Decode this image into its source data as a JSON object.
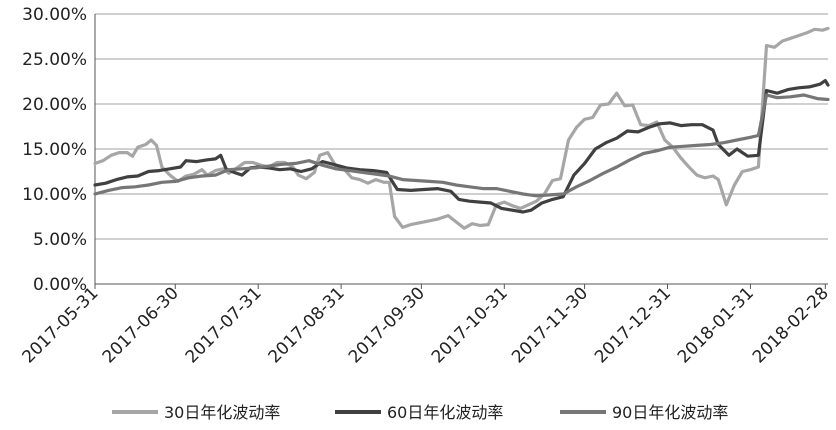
{
  "chart_data": {
    "type": "line",
    "title": "",
    "xlabel": "",
    "ylabel": "",
    "ylim": [
      0,
      0.3
    ],
    "y_ticks": [
      "0.00%",
      "5.00%",
      "10.00%",
      "15.00%",
      "20.00%",
      "25.00%",
      "30.00%"
    ],
    "x_ticks": [
      "2017-05-31",
      "2017-06-30",
      "2017-07-31",
      "2017-08-31",
      "2017-09-30",
      "2017-10-31",
      "2017-11-30",
      "2017-12-31",
      "2018-01-31",
      "2018-02-28"
    ],
    "x_range": [
      "2017-05-31",
      "2018-03-01"
    ],
    "grid": "horizontal",
    "legend_position": "bottom",
    "series": [
      {
        "name": "30日年化波动率",
        "color": "#a6a6a6",
        "points": [
          [
            "2017-05-31",
            0.134
          ],
          [
            "2017-06-03",
            0.137
          ],
          [
            "2017-06-06",
            0.143
          ],
          [
            "2017-06-09",
            0.146
          ],
          [
            "2017-06-12",
            0.146
          ],
          [
            "2017-06-14",
            0.142
          ],
          [
            "2017-06-16",
            0.152
          ],
          [
            "2017-06-19",
            0.155
          ],
          [
            "2017-06-21",
            0.16
          ],
          [
            "2017-06-23",
            0.154
          ],
          [
            "2017-06-25",
            0.13
          ],
          [
            "2017-06-28",
            0.121
          ],
          [
            "2017-07-01",
            0.114
          ],
          [
            "2017-07-04",
            0.12
          ],
          [
            "2017-07-07",
            0.122
          ],
          [
            "2017-07-10",
            0.127
          ],
          [
            "2017-07-12",
            0.121
          ],
          [
            "2017-07-15",
            0.126
          ],
          [
            "2017-07-18",
            0.128
          ],
          [
            "2017-07-20",
            0.123
          ],
          [
            "2017-07-23",
            0.129
          ],
          [
            "2017-07-26",
            0.135
          ],
          [
            "2017-07-29",
            0.135
          ],
          [
            "2017-08-01",
            0.132
          ],
          [
            "2017-08-04",
            0.13
          ],
          [
            "2017-08-07",
            0.135
          ],
          [
            "2017-08-10",
            0.135
          ],
          [
            "2017-08-13",
            0.13
          ],
          [
            "2017-08-15",
            0.121
          ],
          [
            "2017-08-18",
            0.117
          ],
          [
            "2017-08-21",
            0.124
          ],
          [
            "2017-08-23",
            0.143
          ],
          [
            "2017-08-26",
            0.146
          ],
          [
            "2017-08-29",
            0.131
          ],
          [
            "2017-09-01",
            0.128
          ],
          [
            "2017-09-04",
            0.118
          ],
          [
            "2017-09-07",
            0.116
          ],
          [
            "2017-09-10",
            0.112
          ],
          [
            "2017-09-13",
            0.116
          ],
          [
            "2017-09-16",
            0.113
          ],
          [
            "2017-09-18",
            0.113
          ],
          [
            "2017-09-20",
            0.075
          ],
          [
            "2017-09-23",
            0.063
          ],
          [
            "2017-09-26",
            0.066
          ],
          [
            "2017-10-01",
            0.069
          ],
          [
            "2017-10-06",
            0.072
          ],
          [
            "2017-10-10",
            0.076
          ],
          [
            "2017-10-13",
            0.069
          ],
          [
            "2017-10-16",
            0.062
          ],
          [
            "2017-10-19",
            0.067
          ],
          [
            "2017-10-22",
            0.065
          ],
          [
            "2017-10-25",
            0.066
          ],
          [
            "2017-10-28",
            0.088
          ],
          [
            "2017-10-31",
            0.091
          ],
          [
            "2017-11-03",
            0.087
          ],
          [
            "2017-11-06",
            0.084
          ],
          [
            "2017-11-09",
            0.088
          ],
          [
            "2017-11-12",
            0.092
          ],
          [
            "2017-11-15",
            0.1
          ],
          [
            "2017-11-18",
            0.115
          ],
          [
            "2017-11-21",
            0.117
          ],
          [
            "2017-11-24",
            0.16
          ],
          [
            "2017-11-27",
            0.174
          ],
          [
            "2017-11-30",
            0.183
          ],
          [
            "2017-12-03",
            0.185
          ],
          [
            "2017-12-06",
            0.199
          ],
          [
            "2017-12-09",
            0.2
          ],
          [
            "2017-12-12",
            0.212
          ],
          [
            "2017-12-15",
            0.198
          ],
          [
            "2017-12-18",
            0.199
          ],
          [
            "2017-12-21",
            0.177
          ],
          [
            "2017-12-24",
            0.176
          ],
          [
            "2017-12-27",
            0.18
          ],
          [
            "2017-12-30",
            0.16
          ],
          [
            "2018-01-02",
            0.152
          ],
          [
            "2018-01-05",
            0.14
          ],
          [
            "2018-01-08",
            0.13
          ],
          [
            "2018-01-11",
            0.121
          ],
          [
            "2018-01-14",
            0.118
          ],
          [
            "2018-01-17",
            0.12
          ],
          [
            "2018-01-19",
            0.116
          ],
          [
            "2018-01-22",
            0.088
          ],
          [
            "2018-01-25",
            0.11
          ],
          [
            "2018-01-28",
            0.125
          ],
          [
            "2018-01-31",
            0.127
          ],
          [
            "2018-02-03",
            0.13
          ],
          [
            "2018-02-06",
            0.265
          ],
          [
            "2018-02-09",
            0.263
          ],
          [
            "2018-02-12",
            0.27
          ],
          [
            "2018-02-15",
            0.273
          ],
          [
            "2018-02-18",
            0.276
          ],
          [
            "2018-02-21",
            0.279
          ],
          [
            "2018-02-24",
            0.283
          ],
          [
            "2018-02-27",
            0.282
          ],
          [
            "2018-03-01",
            0.284
          ]
        ]
      },
      {
        "name": "60日年化波动率",
        "color": "#404040",
        "points": [
          [
            "2017-05-31",
            0.11
          ],
          [
            "2017-06-04",
            0.112
          ],
          [
            "2017-06-08",
            0.116
          ],
          [
            "2017-06-12",
            0.119
          ],
          [
            "2017-06-16",
            0.12
          ],
          [
            "2017-06-20",
            0.125
          ],
          [
            "2017-06-24",
            0.126
          ],
          [
            "2017-06-28",
            0.128
          ],
          [
            "2017-07-02",
            0.13
          ],
          [
            "2017-07-04",
            0.137
          ],
          [
            "2017-07-08",
            0.136
          ],
          [
            "2017-07-12",
            0.138
          ],
          [
            "2017-07-15",
            0.139
          ],
          [
            "2017-07-17",
            0.143
          ],
          [
            "2017-07-19",
            0.128
          ],
          [
            "2017-07-22",
            0.124
          ],
          [
            "2017-07-25",
            0.121
          ],
          [
            "2017-07-28",
            0.129
          ],
          [
            "2017-07-31",
            0.13
          ],
          [
            "2017-08-04",
            0.129
          ],
          [
            "2017-08-08",
            0.127
          ],
          [
            "2017-08-12",
            0.128
          ],
          [
            "2017-08-16",
            0.125
          ],
          [
            "2017-08-20",
            0.128
          ],
          [
            "2017-08-24",
            0.136
          ],
          [
            "2017-08-28",
            0.133
          ],
          [
            "2017-09-02",
            0.129
          ],
          [
            "2017-09-07",
            0.127
          ],
          [
            "2017-09-12",
            0.126
          ],
          [
            "2017-09-17",
            0.124
          ],
          [
            "2017-09-21",
            0.105
          ],
          [
            "2017-09-26",
            0.104
          ],
          [
            "2017-10-01",
            0.105
          ],
          [
            "2017-10-06",
            0.106
          ],
          [
            "2017-10-11",
            0.103
          ],
          [
            "2017-10-14",
            0.094
          ],
          [
            "2017-10-18",
            0.092
          ],
          [
            "2017-10-22",
            0.091
          ],
          [
            "2017-10-26",
            0.09
          ],
          [
            "2017-10-30",
            0.084
          ],
          [
            "2017-11-03",
            0.082
          ],
          [
            "2017-11-07",
            0.08
          ],
          [
            "2017-11-10",
            0.082
          ],
          [
            "2017-11-14",
            0.09
          ],
          [
            "2017-11-18",
            0.094
          ],
          [
            "2017-11-22",
            0.097
          ],
          [
            "2017-11-26",
            0.121
          ],
          [
            "2017-11-30",
            0.134
          ],
          [
            "2017-12-04",
            0.15
          ],
          [
            "2017-12-08",
            0.157
          ],
          [
            "2017-12-12",
            0.162
          ],
          [
            "2017-12-16",
            0.17
          ],
          [
            "2017-12-20",
            0.169
          ],
          [
            "2017-12-24",
            0.174
          ],
          [
            "2017-12-28",
            0.178
          ],
          [
            "2018-01-01",
            0.179
          ],
          [
            "2018-01-05",
            0.176
          ],
          [
            "2018-01-09",
            0.177
          ],
          [
            "2018-01-13",
            0.177
          ],
          [
            "2018-01-17",
            0.171
          ],
          [
            "2018-01-19",
            0.155
          ],
          [
            "2018-01-23",
            0.143
          ],
          [
            "2018-01-26",
            0.15
          ],
          [
            "2018-01-30",
            0.142
          ],
          [
            "2018-02-03",
            0.143
          ],
          [
            "2018-02-06",
            0.215
          ],
          [
            "2018-02-10",
            0.212
          ],
          [
            "2018-02-14",
            0.216
          ],
          [
            "2018-02-18",
            0.218
          ],
          [
            "2018-02-22",
            0.219
          ],
          [
            "2018-02-26",
            0.222
          ],
          [
            "2018-02-28",
            0.226
          ],
          [
            "2018-03-01",
            0.221
          ]
        ]
      },
      {
        "name": "90日年化波动率",
        "color": "#767676",
        "points": [
          [
            "2017-05-31",
            0.1
          ],
          [
            "2017-06-05",
            0.104
          ],
          [
            "2017-06-10",
            0.107
          ],
          [
            "2017-06-15",
            0.108
          ],
          [
            "2017-06-20",
            0.11
          ],
          [
            "2017-06-25",
            0.113
          ],
          [
            "2017-06-30",
            0.114
          ],
          [
            "2017-07-05",
            0.118
          ],
          [
            "2017-07-10",
            0.12
          ],
          [
            "2017-07-15",
            0.121
          ],
          [
            "2017-07-20",
            0.127
          ],
          [
            "2017-07-25",
            0.128
          ],
          [
            "2017-07-30",
            0.129
          ],
          [
            "2017-08-04",
            0.131
          ],
          [
            "2017-08-09",
            0.133
          ],
          [
            "2017-08-14",
            0.134
          ],
          [
            "2017-08-19",
            0.137
          ],
          [
            "2017-08-24",
            0.132
          ],
          [
            "2017-08-29",
            0.128
          ],
          [
            "2017-09-03",
            0.126
          ],
          [
            "2017-09-08",
            0.124
          ],
          [
            "2017-09-13",
            0.122
          ],
          [
            "2017-09-18",
            0.12
          ],
          [
            "2017-09-23",
            0.116
          ],
          [
            "2017-09-28",
            0.115
          ],
          [
            "2017-10-03",
            0.114
          ],
          [
            "2017-10-08",
            0.113
          ],
          [
            "2017-10-13",
            0.11
          ],
          [
            "2017-10-18",
            0.108
          ],
          [
            "2017-10-23",
            0.106
          ],
          [
            "2017-10-28",
            0.106
          ],
          [
            "2017-11-02",
            0.103
          ],
          [
            "2017-11-07",
            0.1
          ],
          [
            "2017-11-12",
            0.098
          ],
          [
            "2017-11-17",
            0.099
          ],
          [
            "2017-11-22",
            0.1
          ],
          [
            "2017-11-27",
            0.108
          ],
          [
            "2017-12-02",
            0.115
          ],
          [
            "2017-12-07",
            0.123
          ],
          [
            "2017-12-12",
            0.13
          ],
          [
            "2017-12-17",
            0.138
          ],
          [
            "2017-12-22",
            0.145
          ],
          [
            "2017-12-27",
            0.148
          ],
          [
            "2018-01-01",
            0.152
          ],
          [
            "2018-01-06",
            0.153
          ],
          [
            "2018-01-11",
            0.154
          ],
          [
            "2018-01-16",
            0.155
          ],
          [
            "2018-01-21",
            0.157
          ],
          [
            "2018-01-26",
            0.16
          ],
          [
            "2018-01-31",
            0.163
          ],
          [
            "2018-02-03",
            0.165
          ],
          [
            "2018-02-06",
            0.21
          ],
          [
            "2018-02-10",
            0.207
          ],
          [
            "2018-02-15",
            0.208
          ],
          [
            "2018-02-20",
            0.21
          ],
          [
            "2018-02-25",
            0.206
          ],
          [
            "2018-03-01",
            0.205
          ]
        ]
      }
    ]
  }
}
